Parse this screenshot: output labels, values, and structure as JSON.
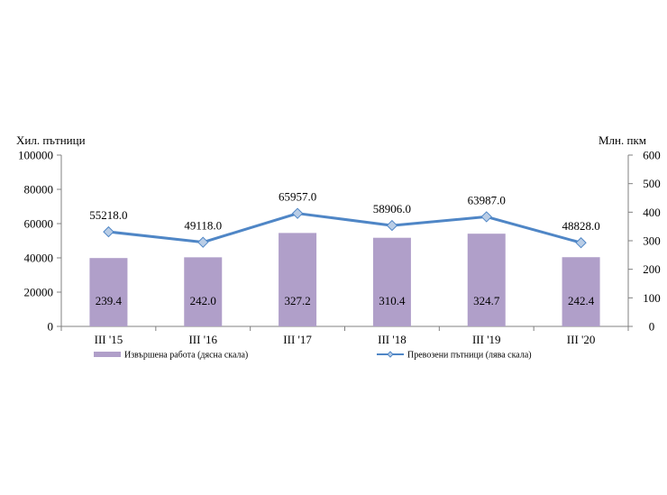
{
  "chart_data": {
    "type": "bar+line",
    "categories": [
      "III '15",
      "III '16",
      "III '17",
      "III '18",
      "III '19",
      "III '20"
    ],
    "series": [
      {
        "name": "Извършена работа (дясна скала)",
        "type": "bar",
        "axis": "right",
        "values": [
          239.4,
          242.0,
          327.2,
          310.4,
          324.7,
          242.4
        ],
        "labels": [
          "239.4",
          "242.0",
          "327.2",
          "310.4",
          "324.7",
          "242.4"
        ],
        "color": "#b09fc9"
      },
      {
        "name": "Превозени пътници (лява скала)",
        "type": "line",
        "axis": "left",
        "values": [
          55218.0,
          49118.0,
          65957.0,
          58906.0,
          63987.0,
          48828.0
        ],
        "labels": [
          "55218.0",
          "49118.0",
          "65957.0",
          "58906.0",
          "63987.0",
          "48828.0"
        ],
        "color": "#4f86c6",
        "marker_color": "#b9cde6"
      }
    ],
    "left_axis": {
      "label": "Хил. пътници",
      "range": [
        0,
        100000
      ],
      "ticks": [
        "0",
        "20000",
        "40000",
        "60000",
        "80000",
        "100000"
      ]
    },
    "right_axis": {
      "label": "Млн. пкм",
      "range": [
        0,
        600
      ],
      "ticks": [
        "0",
        "100",
        "200",
        "300",
        "400",
        "500",
        "600"
      ]
    },
    "grid": false,
    "legend_position": "bottom"
  }
}
